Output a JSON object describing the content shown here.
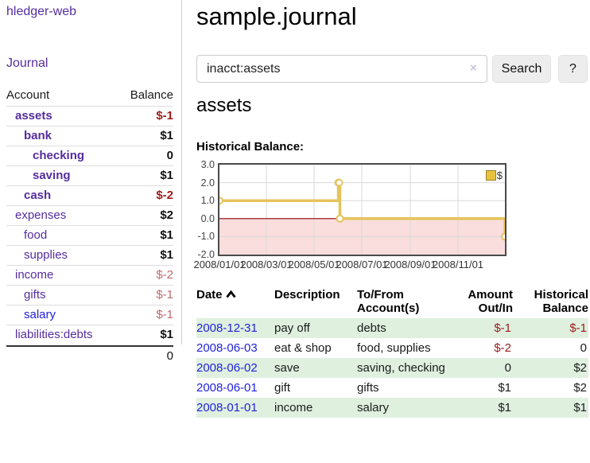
{
  "app": {
    "brand": "hledger-web"
  },
  "sidebar": {
    "journal_link": "Journal",
    "accounts_table": {
      "headers": {
        "account": "Account",
        "balance": "Balance"
      },
      "rows": [
        {
          "name": "assets",
          "level": 1,
          "bold": true,
          "balance": "$-1",
          "neg": true
        },
        {
          "name": "bank",
          "level": 2,
          "bold": true,
          "balance": "$1"
        },
        {
          "name": "checking",
          "level": 3,
          "bold": true,
          "balance": "0"
        },
        {
          "name": "saving",
          "level": 3,
          "bold": true,
          "balance": "$1"
        },
        {
          "name": "cash",
          "level": 2,
          "bold": true,
          "balance": "$-2",
          "neg": true
        },
        {
          "name": "expenses",
          "level": 1,
          "balance": "$2"
        },
        {
          "name": "food",
          "level": 2,
          "balance": "$1"
        },
        {
          "name": "supplies",
          "level": 2,
          "balance": "$1"
        },
        {
          "name": "income",
          "level": 1,
          "balance": "$-2",
          "dim_neg": true
        },
        {
          "name": "gifts",
          "level": 2,
          "balance": "$-1",
          "dim_neg": true
        },
        {
          "name": "salary",
          "level": 2,
          "blue": true,
          "balance": "$-1",
          "dim_neg": true
        },
        {
          "name": "liabilities:debts",
          "level": 1,
          "balance": "$1"
        }
      ],
      "total": "0"
    }
  },
  "header": {
    "title": "sample.journal"
  },
  "search": {
    "value": "inacct:assets",
    "clear_icon": "×",
    "button_label": "Search",
    "help_label": "?"
  },
  "account_page": {
    "heading": "assets",
    "chart_label": "Historical Balance:"
  },
  "chart_data": {
    "type": "line",
    "step": true,
    "title": "Historical Balance",
    "series": [
      {
        "name": "$",
        "color": "#e6c35c",
        "points": [
          [
            "2008-01-01",
            1
          ],
          [
            "2008-06-01",
            2
          ],
          [
            "2008-06-02",
            2
          ],
          [
            "2008-06-03",
            0
          ],
          [
            "2008-12-31",
            -1
          ]
        ]
      }
    ],
    "x_range": [
      "2008-01-01",
      "2008-12-31"
    ],
    "ylim": [
      -2,
      3
    ],
    "yticks": [
      {
        "v": 3,
        "label": "3.0"
      },
      {
        "v": 2,
        "label": "2.0"
      },
      {
        "v": 1,
        "label": "1.0"
      },
      {
        "v": 0,
        "label": "0.0"
      },
      {
        "v": -1,
        "label": "-1.0"
      },
      {
        "v": -2,
        "label": "-2.0"
      }
    ],
    "xticks": [
      {
        "date": "2008-01-01",
        "label": "2008/01/01"
      },
      {
        "date": "2008-03-01",
        "label": "2008/03/01"
      },
      {
        "date": "2008-05-01",
        "label": "2008/05/01"
      },
      {
        "date": "2008-07-01",
        "label": "2008/07/01"
      },
      {
        "date": "2008-09-01",
        "label": "2008/09/01"
      },
      {
        "date": "2008-11-01",
        "label": "2008/11/01"
      }
    ],
    "legend": {
      "label": "$",
      "position": "top-right"
    },
    "colors": {
      "negative_fill": "#fadddd",
      "zero_line": "#910000",
      "grid": "#d9d9d9",
      "line": "#e6c35c",
      "marker_fill": "#ffffff"
    },
    "grid": true
  },
  "transactions": {
    "headers": {
      "date": "Date",
      "description": "Description",
      "accounts": "To/From Account(s)",
      "amount": "Amount Out/In",
      "balance": "Historical Balance"
    },
    "rows": [
      {
        "date": "2008-12-31",
        "description": "pay off",
        "accounts": "debts",
        "amount": "$-1",
        "amount_neg": true,
        "balance": "$-1",
        "balance_neg": true
      },
      {
        "date": "2008-06-03",
        "description": "eat & shop",
        "accounts": "food, supplies",
        "amount": "$-2",
        "amount_neg": true,
        "balance": "0"
      },
      {
        "date": "2008-06-02",
        "description": "save",
        "accounts": "saving, checking",
        "amount": "0",
        "balance": "$2"
      },
      {
        "date": "2008-06-01",
        "description": "gift",
        "accounts": "gifts",
        "amount": "$1",
        "balance": "$2"
      },
      {
        "date": "2008-01-01",
        "description": "income",
        "accounts": "salary",
        "amount": "$1",
        "balance": "$1"
      }
    ]
  }
}
